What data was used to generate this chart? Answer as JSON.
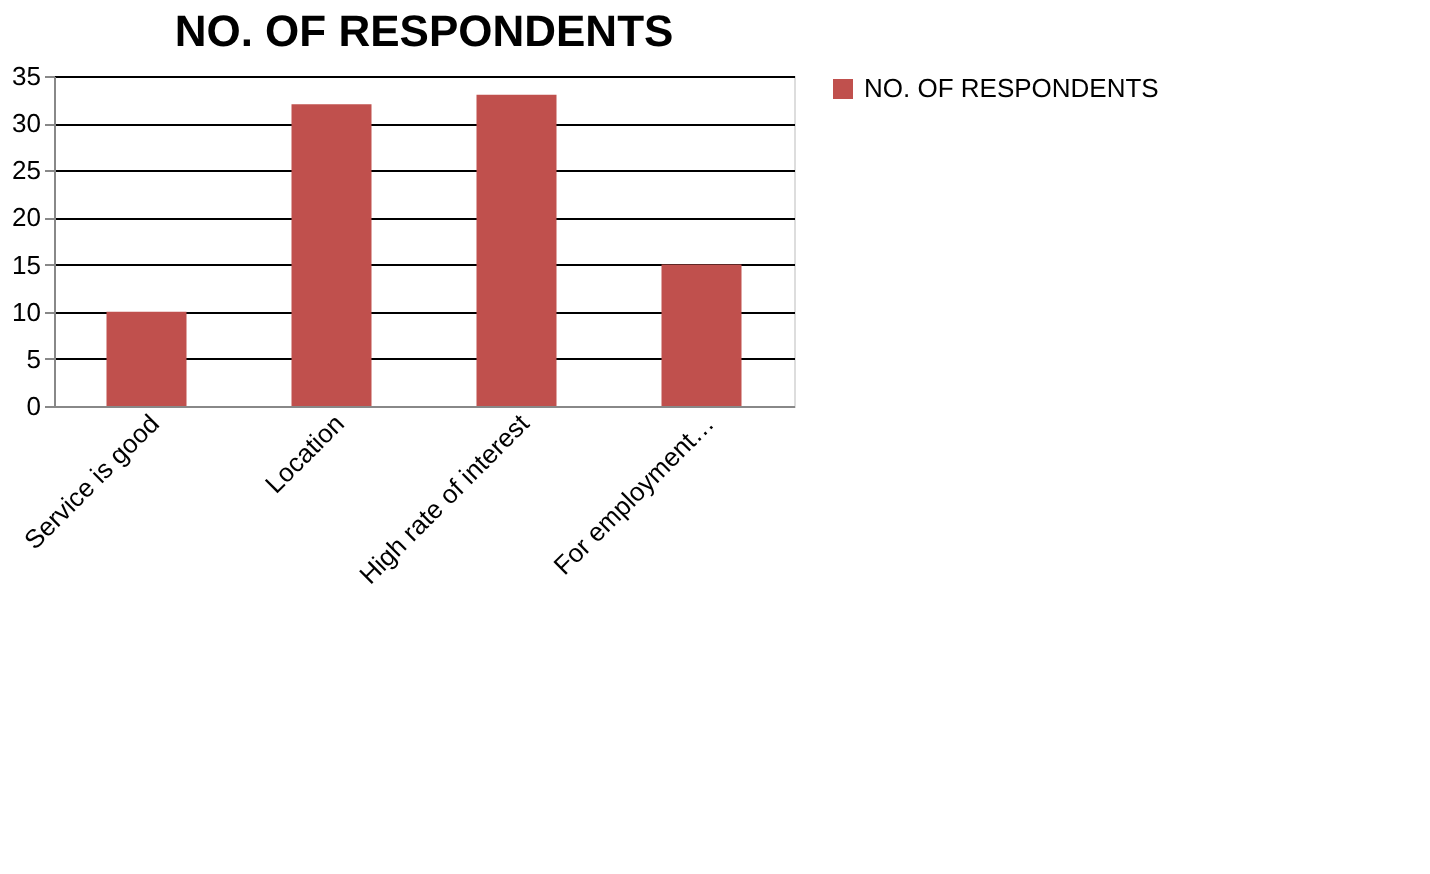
{
  "chart_data": {
    "type": "bar",
    "title": "NO. OF RESPONDENTS",
    "categories": [
      "Service is good",
      "Location",
      "High rate of interest",
      "For employment…"
    ],
    "series": [
      {
        "name": "NO. OF RESPONDENTS",
        "color": "#c0504d",
        "values": [
          10,
          32,
          33,
          15
        ]
      }
    ],
    "ylim": [
      0,
      35
    ],
    "yticks": [
      0,
      5,
      10,
      15,
      20,
      25,
      30,
      35
    ],
    "grid": "y",
    "legend": "right"
  }
}
